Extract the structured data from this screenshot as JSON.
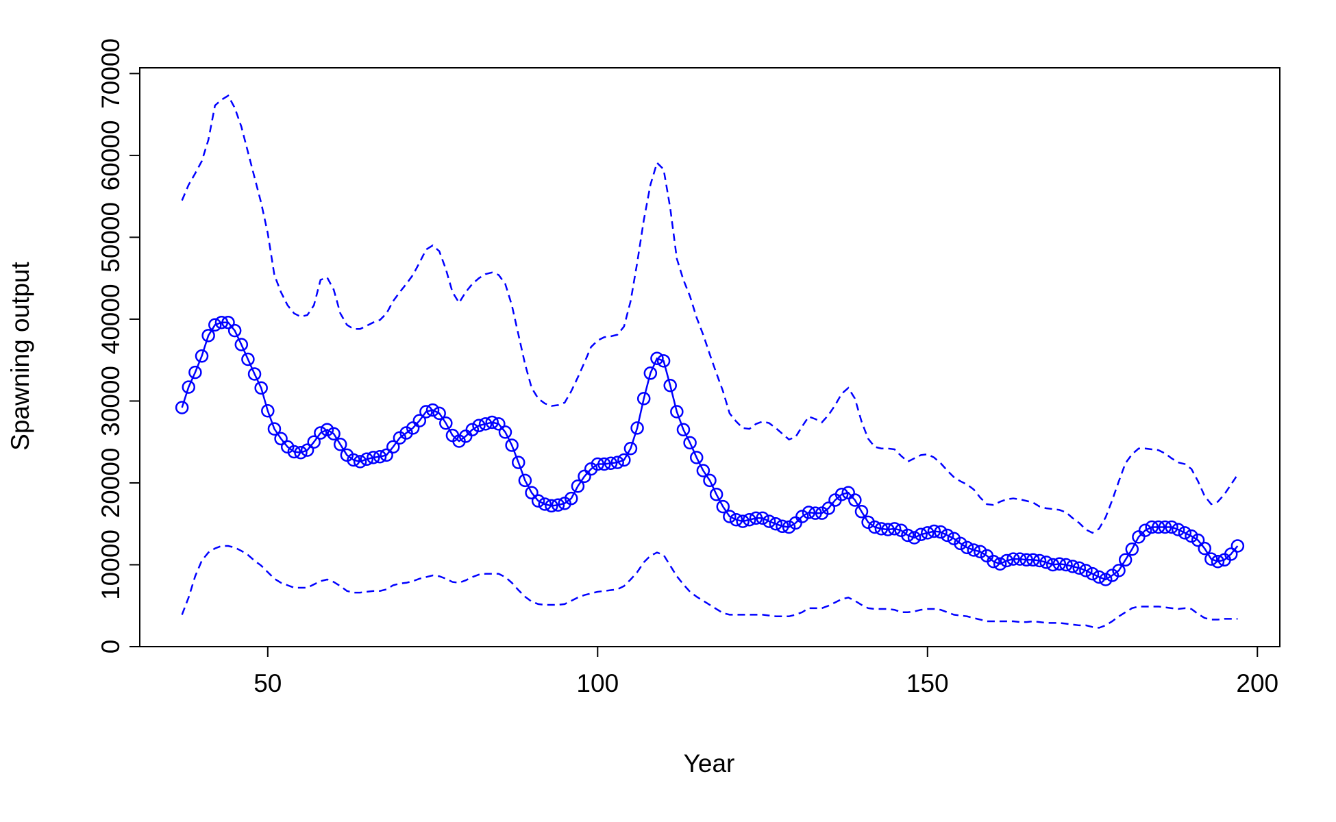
{
  "chart_data": {
    "type": "line",
    "xlabel": "Year",
    "ylabel": "Spawning output",
    "xlim": [
      30.6,
      203.4
    ],
    "xticks": [
      50,
      100,
      150,
      200
    ],
    "ylim": [
      0,
      70700
    ],
    "yticks": [
      0,
      10000,
      20000,
      30000,
      40000,
      50000,
      60000,
      70000
    ],
    "x": [
      37,
      38,
      39,
      40,
      41,
      42,
      43,
      44,
      45,
      46,
      47,
      48,
      49,
      50,
      51,
      52,
      53,
      54,
      55,
      56,
      57,
      58,
      59,
      60,
      61,
      62,
      63,
      64,
      65,
      66,
      67,
      68,
      69,
      70,
      71,
      72,
      73,
      74,
      75,
      76,
      77,
      78,
      79,
      80,
      81,
      82,
      83,
      84,
      85,
      86,
      87,
      88,
      89,
      90,
      91,
      92,
      93,
      94,
      95,
      96,
      97,
      98,
      99,
      100,
      101,
      102,
      103,
      104,
      105,
      106,
      107,
      108,
      109,
      110,
      111,
      112,
      113,
      114,
      115,
      116,
      117,
      118,
      119,
      120,
      121,
      122,
      123,
      124,
      125,
      126,
      127,
      128,
      129,
      130,
      131,
      132,
      133,
      134,
      135,
      136,
      137,
      138,
      139,
      140,
      141,
      142,
      143,
      144,
      145,
      146,
      147,
      148,
      149,
      150,
      151,
      152,
      153,
      154,
      155,
      156,
      157,
      158,
      159,
      160,
      161,
      162,
      163,
      164,
      165,
      166,
      167,
      168,
      169,
      170,
      171,
      172,
      173,
      174,
      175,
      176,
      177,
      178,
      179,
      180,
      181,
      182,
      183,
      184,
      185,
      186,
      187,
      188,
      189,
      190,
      191,
      192,
      193,
      194,
      195,
      196,
      197
    ],
    "series": [
      {
        "color": "#0000ff",
        "style": "solid",
        "marker": "circle",
        "values": [
          29200,
          31700,
          33500,
          35500,
          38000,
          39300,
          39600,
          39600,
          38600,
          36900,
          35100,
          33300,
          31600,
          28800,
          26600,
          25400,
          24400,
          23800,
          23700,
          24000,
          25000,
          26100,
          26500,
          26000,
          24700,
          23400,
          22800,
          22600,
          22900,
          23100,
          23200,
          23400,
          24400,
          25500,
          26100,
          26700,
          27600,
          28700,
          28900,
          28500,
          27300,
          25800,
          25100,
          25700,
          26500,
          27000,
          27200,
          27400,
          27200,
          26200,
          24600,
          22500,
          20300,
          18800,
          17800,
          17400,
          17200,
          17300,
          17500,
          18100,
          19600,
          20800,
          21700,
          22300,
          22300,
          22400,
          22500,
          22800,
          24200,
          26700,
          30300,
          33400,
          35200,
          34900,
          31900,
          28700,
          26500,
          24900,
          23100,
          21500,
          20300,
          18600,
          17100,
          15900,
          15500,
          15300,
          15500,
          15700,
          15700,
          15300,
          15000,
          14700,
          14600,
          15100,
          15900,
          16400,
          16300,
          16300,
          16900,
          17900,
          18600,
          18800,
          17900,
          16500,
          15200,
          14600,
          14400,
          14300,
          14400,
          14200,
          13600,
          13300,
          13700,
          13900,
          14100,
          14000,
          13600,
          13200,
          12600,
          12100,
          11800,
          11600,
          11100,
          10400,
          10100,
          10500,
          10700,
          10700,
          10600,
          10600,
          10500,
          10300,
          10000,
          10100,
          10000,
          9800,
          9600,
          9300,
          8900,
          8500,
          8200,
          8700,
          9300,
          10600,
          11900,
          13400,
          14200,
          14600,
          14600,
          14600,
          14600,
          14300,
          13900,
          13500,
          13000,
          12000,
          10700,
          10400,
          10600,
          11300,
          12300
        ]
      },
      {
        "color": "#0000ff",
        "style": "dashed",
        "marker": "none",
        "values": [
          54500,
          56400,
          57800,
          59300,
          61900,
          66100,
          66800,
          67300,
          65800,
          63500,
          60400,
          57300,
          54200,
          50500,
          45400,
          43300,
          41700,
          40700,
          40300,
          40500,
          41700,
          44800,
          45100,
          43600,
          40700,
          39300,
          38800,
          38800,
          39200,
          39600,
          39900,
          40700,
          42200,
          43300,
          44300,
          45400,
          46900,
          48500,
          49000,
          48300,
          46100,
          43300,
          42000,
          43300,
          44300,
          45000,
          45500,
          45700,
          45400,
          44300,
          41700,
          38100,
          34500,
          31600,
          30300,
          29700,
          29400,
          29500,
          29800,
          31200,
          32900,
          34700,
          36600,
          37400,
          37800,
          37900,
          38100,
          39100,
          42200,
          46900,
          52100,
          56400,
          59100,
          58300,
          53600,
          47400,
          44800,
          42800,
          40200,
          38100,
          35700,
          33400,
          31200,
          28500,
          27500,
          26700,
          26600,
          27200,
          27500,
          27300,
          26700,
          26000,
          25300,
          25600,
          26900,
          28100,
          27800,
          27400,
          28300,
          29500,
          30900,
          31600,
          30300,
          27500,
          25400,
          24400,
          24200,
          24200,
          24100,
          23300,
          22600,
          23000,
          23400,
          23500,
          23100,
          22400,
          21500,
          20700,
          20200,
          19800,
          19200,
          18200,
          17400,
          17300,
          17700,
          18000,
          18100,
          18000,
          17800,
          17600,
          17100,
          16900,
          16800,
          16700,
          16400,
          15700,
          15100,
          14300,
          13900,
          14400,
          15800,
          17900,
          20200,
          22400,
          23500,
          24200,
          24200,
          24100,
          24000,
          23600,
          23000,
          22500,
          22300,
          21700,
          20200,
          18400,
          17400,
          17700,
          18600,
          19800,
          21000
        ]
      },
      {
        "color": "#0000ff",
        "style": "dashed",
        "marker": "none",
        "values": [
          3900,
          6000,
          8600,
          10500,
          11500,
          12000,
          12300,
          12300,
          12100,
          11700,
          11200,
          10500,
          9900,
          9100,
          8300,
          7800,
          7500,
          7200,
          7200,
          7200,
          7600,
          8000,
          8200,
          7900,
          7400,
          6800,
          6600,
          6600,
          6700,
          6800,
          6800,
          7000,
          7500,
          7700,
          7800,
          8000,
          8300,
          8500,
          8700,
          8600,
          8300,
          7900,
          7800,
          8100,
          8500,
          8800,
          8900,
          8900,
          8900,
          8500,
          7800,
          6900,
          6100,
          5500,
          5200,
          5100,
          5100,
          5100,
          5200,
          5600,
          6000,
          6300,
          6500,
          6700,
          6800,
          6900,
          7000,
          7400,
          8200,
          9100,
          10300,
          11100,
          11500,
          11200,
          9900,
          8600,
          7600,
          6700,
          6100,
          5600,
          5100,
          4600,
          4100,
          3900,
          3900,
          3900,
          3900,
          3900,
          3900,
          3800,
          3700,
          3700,
          3700,
          3900,
          4200,
          4700,
          4700,
          4700,
          5000,
          5400,
          5800,
          6000,
          5600,
          5100,
          4700,
          4600,
          4600,
          4600,
          4500,
          4200,
          4200,
          4300,
          4500,
          4600,
          4600,
          4500,
          4200,
          3900,
          3800,
          3700,
          3500,
          3300,
          3100,
          3100,
          3100,
          3100,
          3100,
          3000,
          3000,
          3100,
          3000,
          2900,
          2900,
          2900,
          2800,
          2700,
          2600,
          2600,
          2400,
          2300,
          2600,
          3100,
          3700,
          4200,
          4700,
          4900,
          4900,
          4900,
          4900,
          4800,
          4700,
          4600,
          4700,
          4600,
          4000,
          3500,
          3300,
          3300,
          3400,
          3400,
          3400
        ]
      }
    ]
  }
}
